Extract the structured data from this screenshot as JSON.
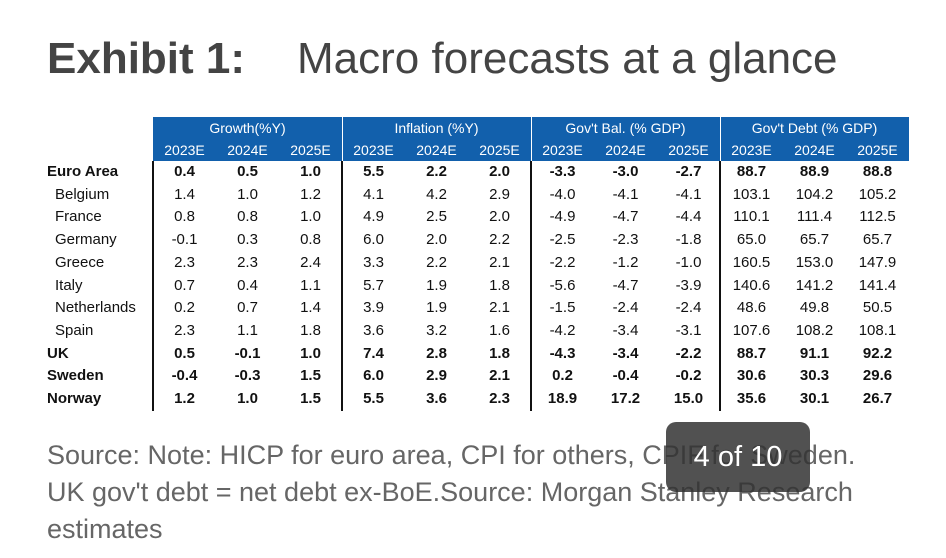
{
  "header": {
    "label": "Exhibit 1:",
    "title": "Macro forecasts at a glance"
  },
  "table": {
    "groups": [
      {
        "name": "Growth(%Y)",
        "years": [
          "2023E",
          "2024E",
          "2025E"
        ]
      },
      {
        "name": "Inflation (%Y)",
        "years": [
          "2023E",
          "2024E",
          "2025E"
        ]
      },
      {
        "name": "Gov't Bal. (% GDP)",
        "years": [
          "2023E",
          "2024E",
          "2025E"
        ]
      },
      {
        "name": "Gov't Debt (% GDP)",
        "years": [
          "2023E",
          "2024E",
          "2025E"
        ]
      }
    ],
    "rows": [
      {
        "country": "Euro Area",
        "bold": true,
        "values": [
          "0.4",
          "0.5",
          "1.0",
          "5.5",
          "2.2",
          "2.0",
          "-3.3",
          "-3.0",
          "-2.7",
          "88.7",
          "88.9",
          "88.8"
        ]
      },
      {
        "country": "Belgium",
        "bold": false,
        "values": [
          "1.4",
          "1.0",
          "1.2",
          "4.1",
          "4.2",
          "2.9",
          "-4.0",
          "-4.1",
          "-4.1",
          "103.1",
          "104.2",
          "105.2"
        ]
      },
      {
        "country": "France",
        "bold": false,
        "values": [
          "0.8",
          "0.8",
          "1.0",
          "4.9",
          "2.5",
          "2.0",
          "-4.9",
          "-4.7",
          "-4.4",
          "110.1",
          "111.4",
          "112.5"
        ]
      },
      {
        "country": "Germany",
        "bold": false,
        "values": [
          "-0.1",
          "0.3",
          "0.8",
          "6.0",
          "2.0",
          "2.2",
          "-2.5",
          "-2.3",
          "-1.8",
          "65.0",
          "65.7",
          "65.7"
        ]
      },
      {
        "country": "Greece",
        "bold": false,
        "values": [
          "2.3",
          "2.3",
          "2.4",
          "3.3",
          "2.2",
          "2.1",
          "-2.2",
          "-1.2",
          "-1.0",
          "160.5",
          "153.0",
          "147.9"
        ]
      },
      {
        "country": "Italy",
        "bold": false,
        "values": [
          "0.7",
          "0.4",
          "1.1",
          "5.7",
          "1.9",
          "1.8",
          "-5.6",
          "-4.7",
          "-3.9",
          "140.6",
          "141.2",
          "141.4"
        ]
      },
      {
        "country": "Netherlands",
        "bold": false,
        "values": [
          "0.2",
          "0.7",
          "1.4",
          "3.9",
          "1.9",
          "2.1",
          "-1.5",
          "-2.4",
          "-2.4",
          "48.6",
          "49.8",
          "50.5"
        ]
      },
      {
        "country": "Spain",
        "bold": false,
        "values": [
          "2.3",
          "1.1",
          "1.8",
          "3.6",
          "3.2",
          "1.6",
          "-4.2",
          "-3.4",
          "-3.1",
          "107.6",
          "108.2",
          "108.1"
        ]
      },
      {
        "country": "UK",
        "bold": true,
        "values": [
          "0.5",
          "-0.1",
          "1.0",
          "7.4",
          "2.8",
          "1.8",
          "-4.3",
          "-3.4",
          "-2.2",
          "88.7",
          "91.1",
          "92.2"
        ]
      },
      {
        "country": "Sweden",
        "bold": true,
        "values": [
          "-0.4",
          "-0.3",
          "1.5",
          "6.0",
          "2.9",
          "2.1",
          "0.2",
          "-0.4",
          "-0.2",
          "30.6",
          "30.3",
          "29.6"
        ]
      },
      {
        "country": "Norway",
        "bold": true,
        "values": [
          "1.2",
          "1.0",
          "1.5",
          "5.5",
          "3.6",
          "2.3",
          "18.9",
          "17.2",
          "15.0",
          "35.6",
          "30.1",
          "26.7"
        ]
      }
    ]
  },
  "footer": {
    "source": "Source: Note: HICP for euro area, CPI for others, CPIF for Sweden. UK gov't debt = net debt ex-BoE.Source: Morgan Stanley Research estimates"
  },
  "pager": "4 of 10"
}
